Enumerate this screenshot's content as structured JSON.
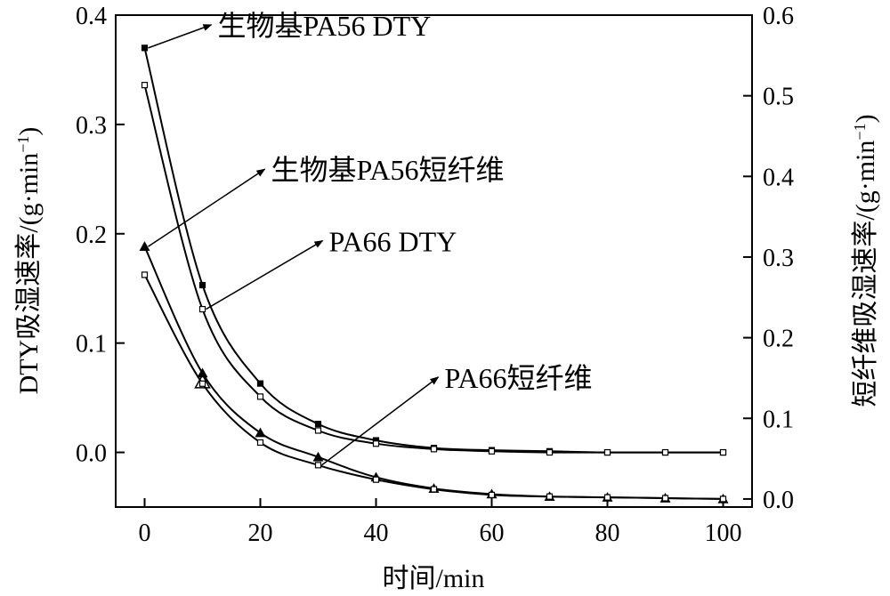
{
  "chart_data": {
    "type": "line",
    "xlabel": "时间/min",
    "ylabel_left": "DTY吸湿速率/(g·min",
    "ylabel_left_sup": "−1",
    "ylabel_left_tail": ")",
    "ylabel_right": "短纤维吸湿速率/(g·min",
    "ylabel_right_sup": "−1",
    "ylabel_right_tail": ")",
    "xlim": [
      -5,
      105
    ],
    "ylim_left": [
      -0.05,
      0.4
    ],
    "ylim_right": [
      -0.01,
      0.6
    ],
    "x_ticks": [
      "0",
      "20",
      "40",
      "60",
      "80",
      "100"
    ],
    "y_left_ticks": [
      "0.0",
      "0.1",
      "0.2",
      "0.3",
      "0.4"
    ],
    "y_right_ticks": [
      "0.0",
      "0.1",
      "0.2",
      "0.3",
      "0.4",
      "0.5",
      "0.6"
    ],
    "series": [
      {
        "name": "生物基PA56 DTY",
        "axis": "left",
        "marker": "filled-square",
        "x": [
          0,
          10,
          20,
          30,
          40,
          50,
          60,
          70,
          80,
          90,
          100
        ],
        "y": [
          0.37,
          0.153,
          0.063,
          0.026,
          0.011,
          0.004,
          0.002,
          0.001,
          0.0,
          0.0,
          0.0
        ]
      },
      {
        "name": "PA66 DTY",
        "axis": "left",
        "marker": "open-square",
        "x": [
          0,
          10,
          20,
          30,
          40,
          50,
          60,
          70,
          80,
          90,
          100
        ],
        "y": [
          0.336,
          0.131,
          0.051,
          0.02,
          0.008,
          0.003,
          0.001,
          0.0,
          0.0,
          0.0,
          0.0
        ]
      },
      {
        "name": "生物基PA56短纤维",
        "axis": "right",
        "marker": "filled-triangle",
        "x": [
          0,
          10,
          20,
          30,
          40,
          50,
          60,
          70,
          80,
          90,
          100
        ],
        "y": [
          0.313,
          0.156,
          0.082,
          0.052,
          0.027,
          0.013,
          0.006,
          0.003,
          0.002,
          0.001,
          0.0
        ]
      },
      {
        "name": "PA66短纤维",
        "axis": "right",
        "marker": "open-square",
        "x": [
          0,
          10,
          20,
          30,
          40,
          50,
          60,
          70,
          80,
          90,
          100
        ],
        "y": [
          0.278,
          0.143,
          0.07,
          0.042,
          0.024,
          0.012,
          0.005,
          0.003,
          0.002,
          0.001,
          0.0
        ]
      }
    ],
    "outlier": {
      "x": 10,
      "y_right": 0.145,
      "marker": "open-triangle"
    },
    "annotations": [
      {
        "text": "生物基PA56 DTY",
        "series": 0,
        "point_index": 0
      },
      {
        "text": "生物基PA56短纤维",
        "series": 2,
        "point_index": 0
      },
      {
        "text": "PA66 DTY",
        "series": 1,
        "point_index": 1
      },
      {
        "text": "PA66短纤维",
        "series": 3,
        "point_index": 3
      }
    ]
  }
}
